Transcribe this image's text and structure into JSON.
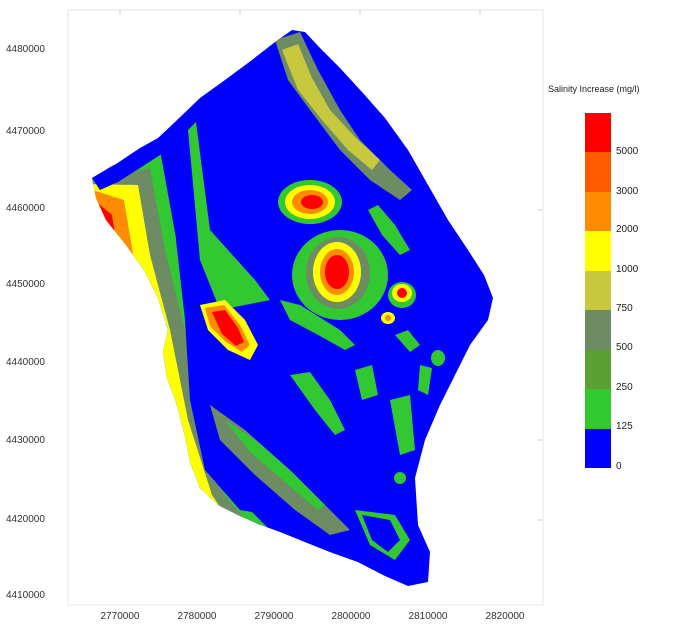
{
  "map": {
    "y_ticks": [
      "4480000",
      "4470000",
      "4460000",
      "4450000",
      "4440000",
      "4430000",
      "4420000",
      "4410000"
    ],
    "x_ticks": [
      "2770000",
      "2780000",
      "2790000",
      "2800000",
      "2810000",
      "2820000"
    ]
  },
  "legend": {
    "title": "Salinity Increase (mg/l)",
    "classes": [
      {
        "label": "5000",
        "color": "#ff0000"
      },
      {
        "label": "3000",
        "color": "#ff5a00"
      },
      {
        "label": "2000",
        "color": "#ff8c00"
      },
      {
        "label": "1000",
        "color": "#ffff00"
      },
      {
        "label": "750",
        "color": "#c8c83c"
      },
      {
        "label": "500",
        "color": "#6e8c64"
      },
      {
        "label": "250",
        "color": "#5aa032"
      },
      {
        "label": "125",
        "color": "#32c832"
      },
      {
        "label": "0",
        "color": "#0000ff"
      }
    ],
    "top_color": "#ff0000"
  }
}
